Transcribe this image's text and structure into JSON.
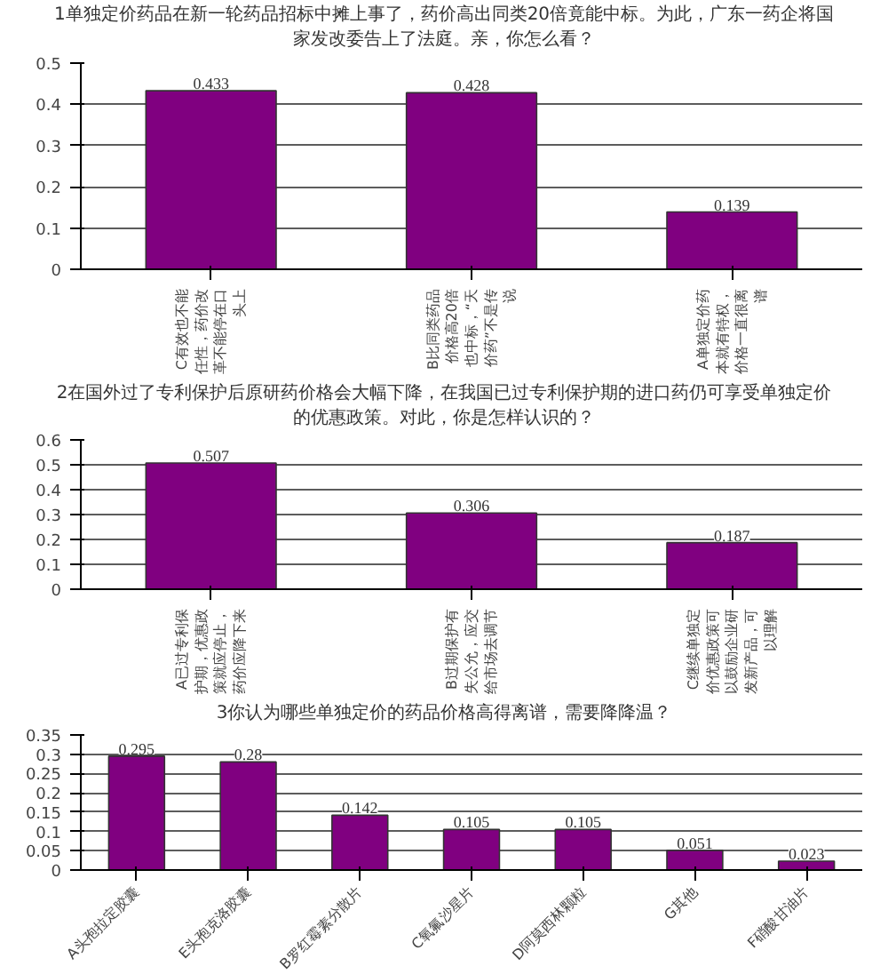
{
  "chart_data": [
    {
      "type": "bar",
      "title": "1单独定价药品在新一轮药品招标中摊上事了，药价高出同类20倍竟能中标。为此，广东一药企将国家发改委告上了法庭。亲，你怎么看？",
      "categories": [
        "C有效也不能任性，药价改革不能停在口头上",
        "B比同类药品价格高20倍也中标，“天价药”不是传说",
        "A单独定价药本就有特权，价格一直很离谱"
      ],
      "values": [
        0.433,
        0.428,
        0.139
      ],
      "color": "#800080",
      "ylim": [
        0,
        0.5
      ],
      "yticks": [
        0,
        0.1,
        0.2,
        0.3,
        0.4,
        0.5
      ],
      "grid": "y",
      "data_labels": true
    },
    {
      "type": "bar",
      "title": "2在国外过了专利保护后原研药价格会大幅下降，在我国已过专利保护期的进口药仍可享受单独定价的优惠政策。对此，你是怎样认识的？",
      "categories": [
        "A已过专利保护期，优惠政策就应停止，药价应降下来",
        "B过期保护有失公允，应交给市场去调节",
        "C继续单独定价优惠政策可以鼓励企业研发新产品，可以理解"
      ],
      "values": [
        0.507,
        0.306,
        0.187
      ],
      "color": "#800080",
      "ylim": [
        0,
        0.6
      ],
      "yticks": [
        0,
        0.1,
        0.2,
        0.3,
        0.4,
        0.5,
        0.6
      ],
      "grid": "y",
      "data_labels": true
    },
    {
      "type": "bar",
      "title": "3你认为哪些单独定价的药品价格高得离谱，需要降降温？",
      "categories": [
        "A头孢拉定胶囊",
        "E头孢克洛胶囊",
        "B罗红霉素分散片",
        "C氧氟沙星片",
        "D阿莫西林颗粒",
        "G其他",
        "F硝酸甘油片"
      ],
      "values": [
        0.295,
        0.28,
        0.142,
        0.105,
        0.105,
        0.051,
        0.023
      ],
      "color": "#800080",
      "ylim": [
        0,
        0.35
      ],
      "yticks": [
        0,
        0.05,
        0.1,
        0.15,
        0.2,
        0.25,
        0.3,
        0.35
      ],
      "grid": "y",
      "data_labels": true
    }
  ]
}
